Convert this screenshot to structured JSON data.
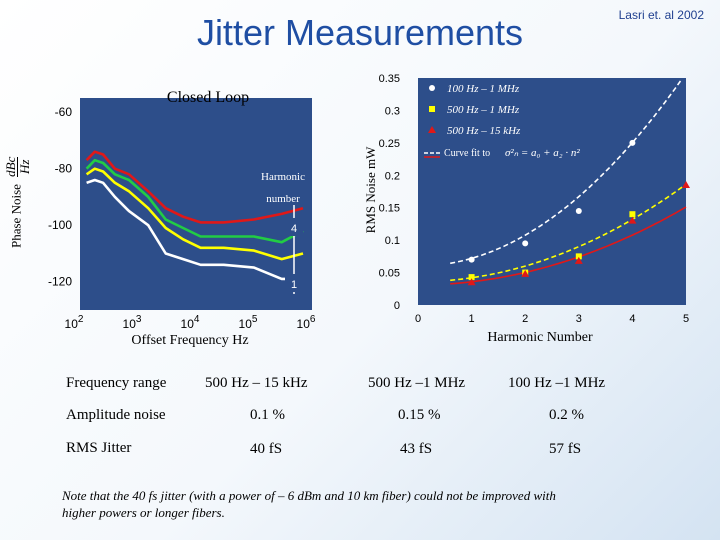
{
  "header": {
    "title": "Jitter Measurements",
    "credit": "Lasri et. al 2002"
  },
  "left_chart": {
    "title": "Closed Loop",
    "ylabel_main": "Phase Noise",
    "ylabel_frac_num": "dBc",
    "ylabel_frac_den": "Hz",
    "xlabel": "Offset Frequency Hz",
    "y_ticks": [
      "-60",
      "-80",
      "-100",
      "-120"
    ],
    "x_ticks": [
      {
        "base": "10",
        "exp": "2"
      },
      {
        "base": "10",
        "exp": "3"
      },
      {
        "base": "10",
        "exp": "4"
      },
      {
        "base": "10",
        "exp": "5"
      },
      {
        "base": "10",
        "exp": "6"
      }
    ],
    "annotation_line1": "Harmonic",
    "annotation_line2": "number",
    "marker_top": "4",
    "marker_bottom": "1"
  },
  "right_chart": {
    "ylabel": "RMS Noise mW",
    "xlabel": "Harmonic Number",
    "y_ticks": [
      "0.35",
      "0.3",
      "0.25",
      "0.2",
      "0.15",
      "0.1",
      "0.05",
      "0"
    ],
    "x_ticks": [
      "0",
      "1",
      "2",
      "3",
      "4",
      "5"
    ],
    "legend": [
      "100 Hz – 1 MHz",
      "500 Hz – 1 MHz",
      "500 Hz – 15 kHz"
    ],
    "legend_fit": "Curve fit to",
    "fit_formula": "σ²ₙ = a₀ + a₂ · n²"
  },
  "table": {
    "rows": [
      {
        "label": "Frequency range",
        "c1": "500 Hz – 15 kHz",
        "c2": "500 Hz –1 MHz",
        "c3": "100 Hz –1 MHz"
      },
      {
        "label": "Amplitude noise",
        "c1": "0.1 %",
        "c2": "0.15 %",
        "c3": "0.2 %"
      },
      {
        "label": "RMS Jitter",
        "c1": "40 fS",
        "c2": "43 fS",
        "c3": "57 fS"
      }
    ]
  },
  "note": "Note that the 40 fs jitter (with a power of – 6 dBm and 10 km fiber) could not be improved with higher powers or longer fibers.",
  "colors": {
    "title": "#1f4ea3",
    "white": "#ffffff",
    "yellow": "#ffff00",
    "red": "#e01818",
    "green": "#22cc44"
  },
  "chart_data": [
    {
      "type": "line",
      "title": "Closed Loop",
      "xlabel": "Offset Frequency Hz",
      "ylabel": "Phase Noise dBc/Hz",
      "xscale": "log",
      "xlim": [
        100,
        1000000
      ],
      "ylim": [
        -130,
        -55
      ],
      "series": [
        {
          "name": "4",
          "color": "#e01818",
          "x": [
            130,
            180,
            250,
            400,
            700,
            1500,
            3000,
            6000,
            12000,
            30000,
            100000,
            300000,
            700000
          ],
          "values": [
            -77,
            -74,
            -75,
            -80,
            -82,
            -88,
            -94,
            -97,
            -99,
            -99,
            -98,
            -96,
            -94
          ]
        },
        {
          "name": "3",
          "color": "#22cc44",
          "x": [
            130,
            180,
            250,
            400,
            700,
            1500,
            3000,
            6000,
            12000,
            30000,
            100000,
            300000,
            700000
          ],
          "values": [
            -80,
            -77,
            -78,
            -82,
            -84,
            -90,
            -98,
            -101,
            -104,
            -104,
            -104,
            -106,
            -102
          ]
        },
        {
          "name": "2",
          "color": "#ffff00",
          "x": [
            130,
            180,
            250,
            400,
            700,
            1500,
            3000,
            6000,
            12000,
            30000,
            100000,
            300000,
            700000
          ],
          "values": [
            -82,
            -80,
            -81,
            -85,
            -88,
            -94,
            -101,
            -105,
            -108,
            -108,
            -109,
            -112,
            -110
          ]
        },
        {
          "name": "1",
          "color": "#ffffff",
          "x": [
            130,
            180,
            250,
            400,
            700,
            1500,
            3000,
            6000,
            12000,
            30000,
            100000,
            300000,
            700000
          ],
          "values": [
            -85,
            -84,
            -85,
            -90,
            -95,
            -100,
            -110,
            -112,
            -114,
            -114,
            -115,
            -119,
            -119
          ]
        }
      ]
    },
    {
      "type": "scatter",
      "xlabel": "Harmonic Number",
      "ylabel": "RMS Noise mW",
      "xlim": [
        0,
        5
      ],
      "ylim": [
        0,
        0.35
      ],
      "series": [
        {
          "name": "100 Hz – 1 MHz",
          "color": "#ffffff",
          "x": [
            1,
            2,
            3,
            4
          ],
          "values": [
            0.07,
            0.095,
            0.145,
            0.25
          ],
          "fit": [
            0.06,
            0.0119
          ]
        },
        {
          "name": "500 Hz – 1 MHz",
          "color": "#ffff00",
          "x": [
            1,
            2,
            3,
            4
          ],
          "values": [
            0.043,
            0.05,
            0.075,
            0.14
          ],
          "fit": [
            0.036,
            0.006
          ]
        },
        {
          "name": "500 Hz – 15 kHz",
          "color": "#e01818",
          "x": [
            1,
            2,
            3,
            4,
            5
          ],
          "values": [
            0.035,
            0.048,
            0.068,
            0.13,
            0.185
          ],
          "fit": [
            0.031,
            0.0048
          ]
        }
      ]
    }
  ]
}
